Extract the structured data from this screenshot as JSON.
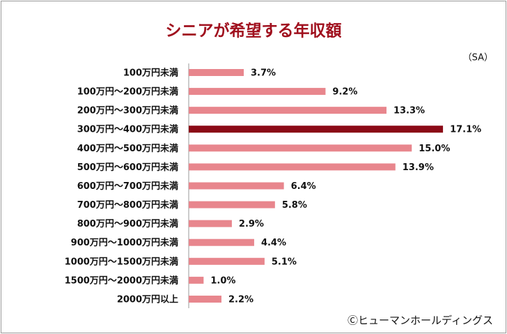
{
  "chart_data": {
    "type": "bar",
    "orientation": "horizontal",
    "title": "シニアが希望する年収額",
    "note": "（SA）",
    "source": "Ⓒヒューマンホールディングス",
    "categories": [
      "100万円未満",
      "100万円～200万円未満",
      "200万円～300万円未満",
      "300万円～400万円未満",
      "400万円～500万円未満",
      "500万円～600万円未満",
      "600万円～700万円未満",
      "700万円～800万円未満",
      "800万円～900万円未満",
      "900万円～1000万円未満",
      "1000万円～1500万円未満",
      "1500万円～2000万円未満",
      "2000万円以上"
    ],
    "values": [
      3.7,
      9.2,
      13.3,
      17.1,
      15.0,
      13.9,
      6.4,
      5.8,
      2.9,
      4.4,
      5.1,
      1.0,
      2.2
    ],
    "value_labels": [
      "3.7%",
      "9.2%",
      "13.3%",
      "17.1%",
      "15.0%",
      "13.9%",
      "6.4%",
      "5.8%",
      "2.9%",
      "4.4%",
      "5.1%",
      "1.0%",
      "2.2%"
    ],
    "colors": [
      "#e8868d",
      "#e8868d",
      "#e8868d",
      "#8b0a16",
      "#e8868d",
      "#e8868d",
      "#e8868d",
      "#e8868d",
      "#e8868d",
      "#e8868d",
      "#e8868d",
      "#e8868d",
      "#e8868d"
    ],
    "title_color": "#a0101e"
  }
}
